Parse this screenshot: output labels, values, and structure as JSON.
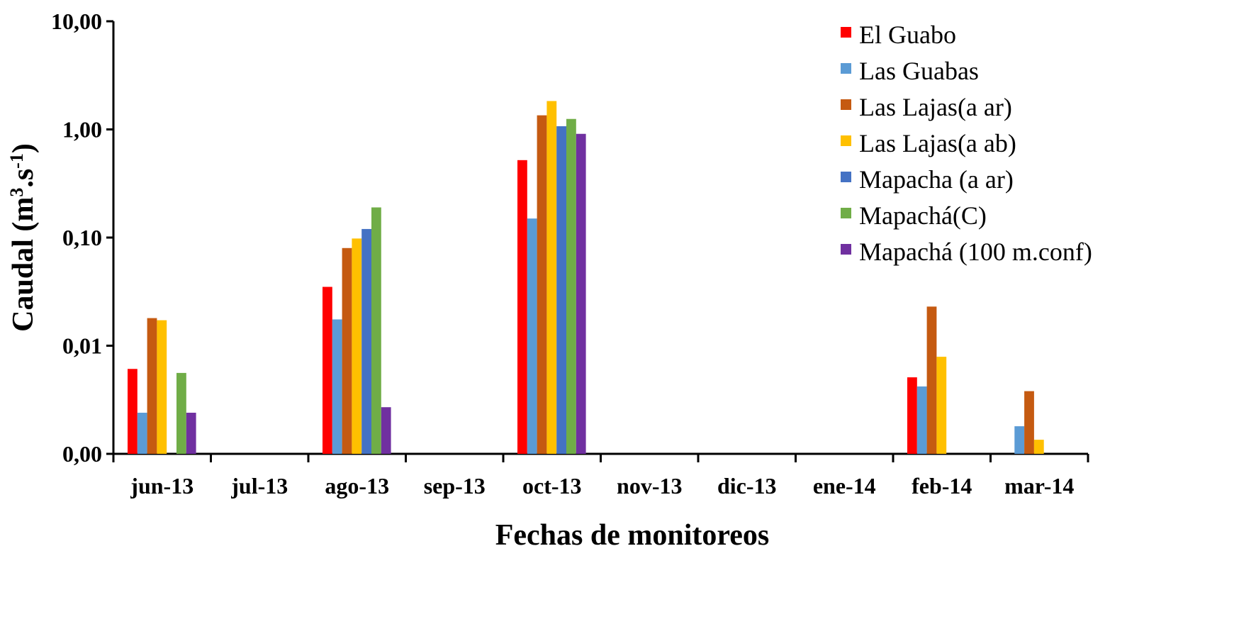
{
  "chart_data": {
    "type": "bar",
    "scale": "log",
    "title": "",
    "xlabel": "Fechas de monitoreos",
    "ylabel": {
      "text": "Caudal (m",
      "sup1": "3",
      "mid": ".s",
      "sup2": "-1",
      "end": ")"
    },
    "categories": [
      "jun-13",
      "jul-13",
      "ago-13",
      "sep-13",
      "oct-13",
      "nov-13",
      "dic-13",
      "ene-14",
      "feb-14",
      "mar-14"
    ],
    "y_ticks": [
      {
        "label": "0,00",
        "value": 0.001
      },
      {
        "label": "0,01",
        "value": 0.01
      },
      {
        "label": "0,10",
        "value": 0.1
      },
      {
        "label": "1,00",
        "value": 1
      },
      {
        "label": "10,00",
        "value": 10
      }
    ],
    "ylim": [
      0.001,
      10
    ],
    "legend_position": "top-right",
    "series": [
      {
        "name": "El Guabo",
        "color": "#FF0000",
        "values": [
          0.0061,
          null,
          0.035,
          null,
          0.52,
          null,
          null,
          null,
          0.0051,
          null
        ]
      },
      {
        "name": "Las Guabas",
        "color": "#5B9BD5",
        "values": [
          0.0024,
          null,
          0.0175,
          null,
          0.15,
          null,
          null,
          null,
          0.0042,
          0.0018
        ]
      },
      {
        "name": "Las Lajas(a ar)",
        "color": "#C55A11",
        "values": [
          0.018,
          null,
          0.08,
          null,
          1.35,
          null,
          null,
          null,
          0.023,
          0.0038
        ]
      },
      {
        "name": "Las Lajas(a ab)",
        "color": "#FFC000",
        "values": [
          0.0172,
          null,
          0.098,
          null,
          1.83,
          null,
          null,
          null,
          0.0079,
          0.00135
        ]
      },
      {
        "name": "Mapacha (a ar)",
        "color": "#4472C4",
        "values": [
          null,
          null,
          0.12,
          null,
          1.07,
          null,
          null,
          null,
          null,
          null
        ]
      },
      {
        "name": "Mapachá(C)",
        "color": "#70AD47",
        "values": [
          0.0056,
          null,
          0.19,
          null,
          1.25,
          null,
          null,
          null,
          null,
          null
        ]
      },
      {
        "name": "Mapachá (100 m.conf)",
        "color": "#7030A0",
        "values": [
          0.0024,
          null,
          0.0027,
          null,
          0.91,
          null,
          null,
          null,
          null,
          null
        ]
      }
    ]
  }
}
